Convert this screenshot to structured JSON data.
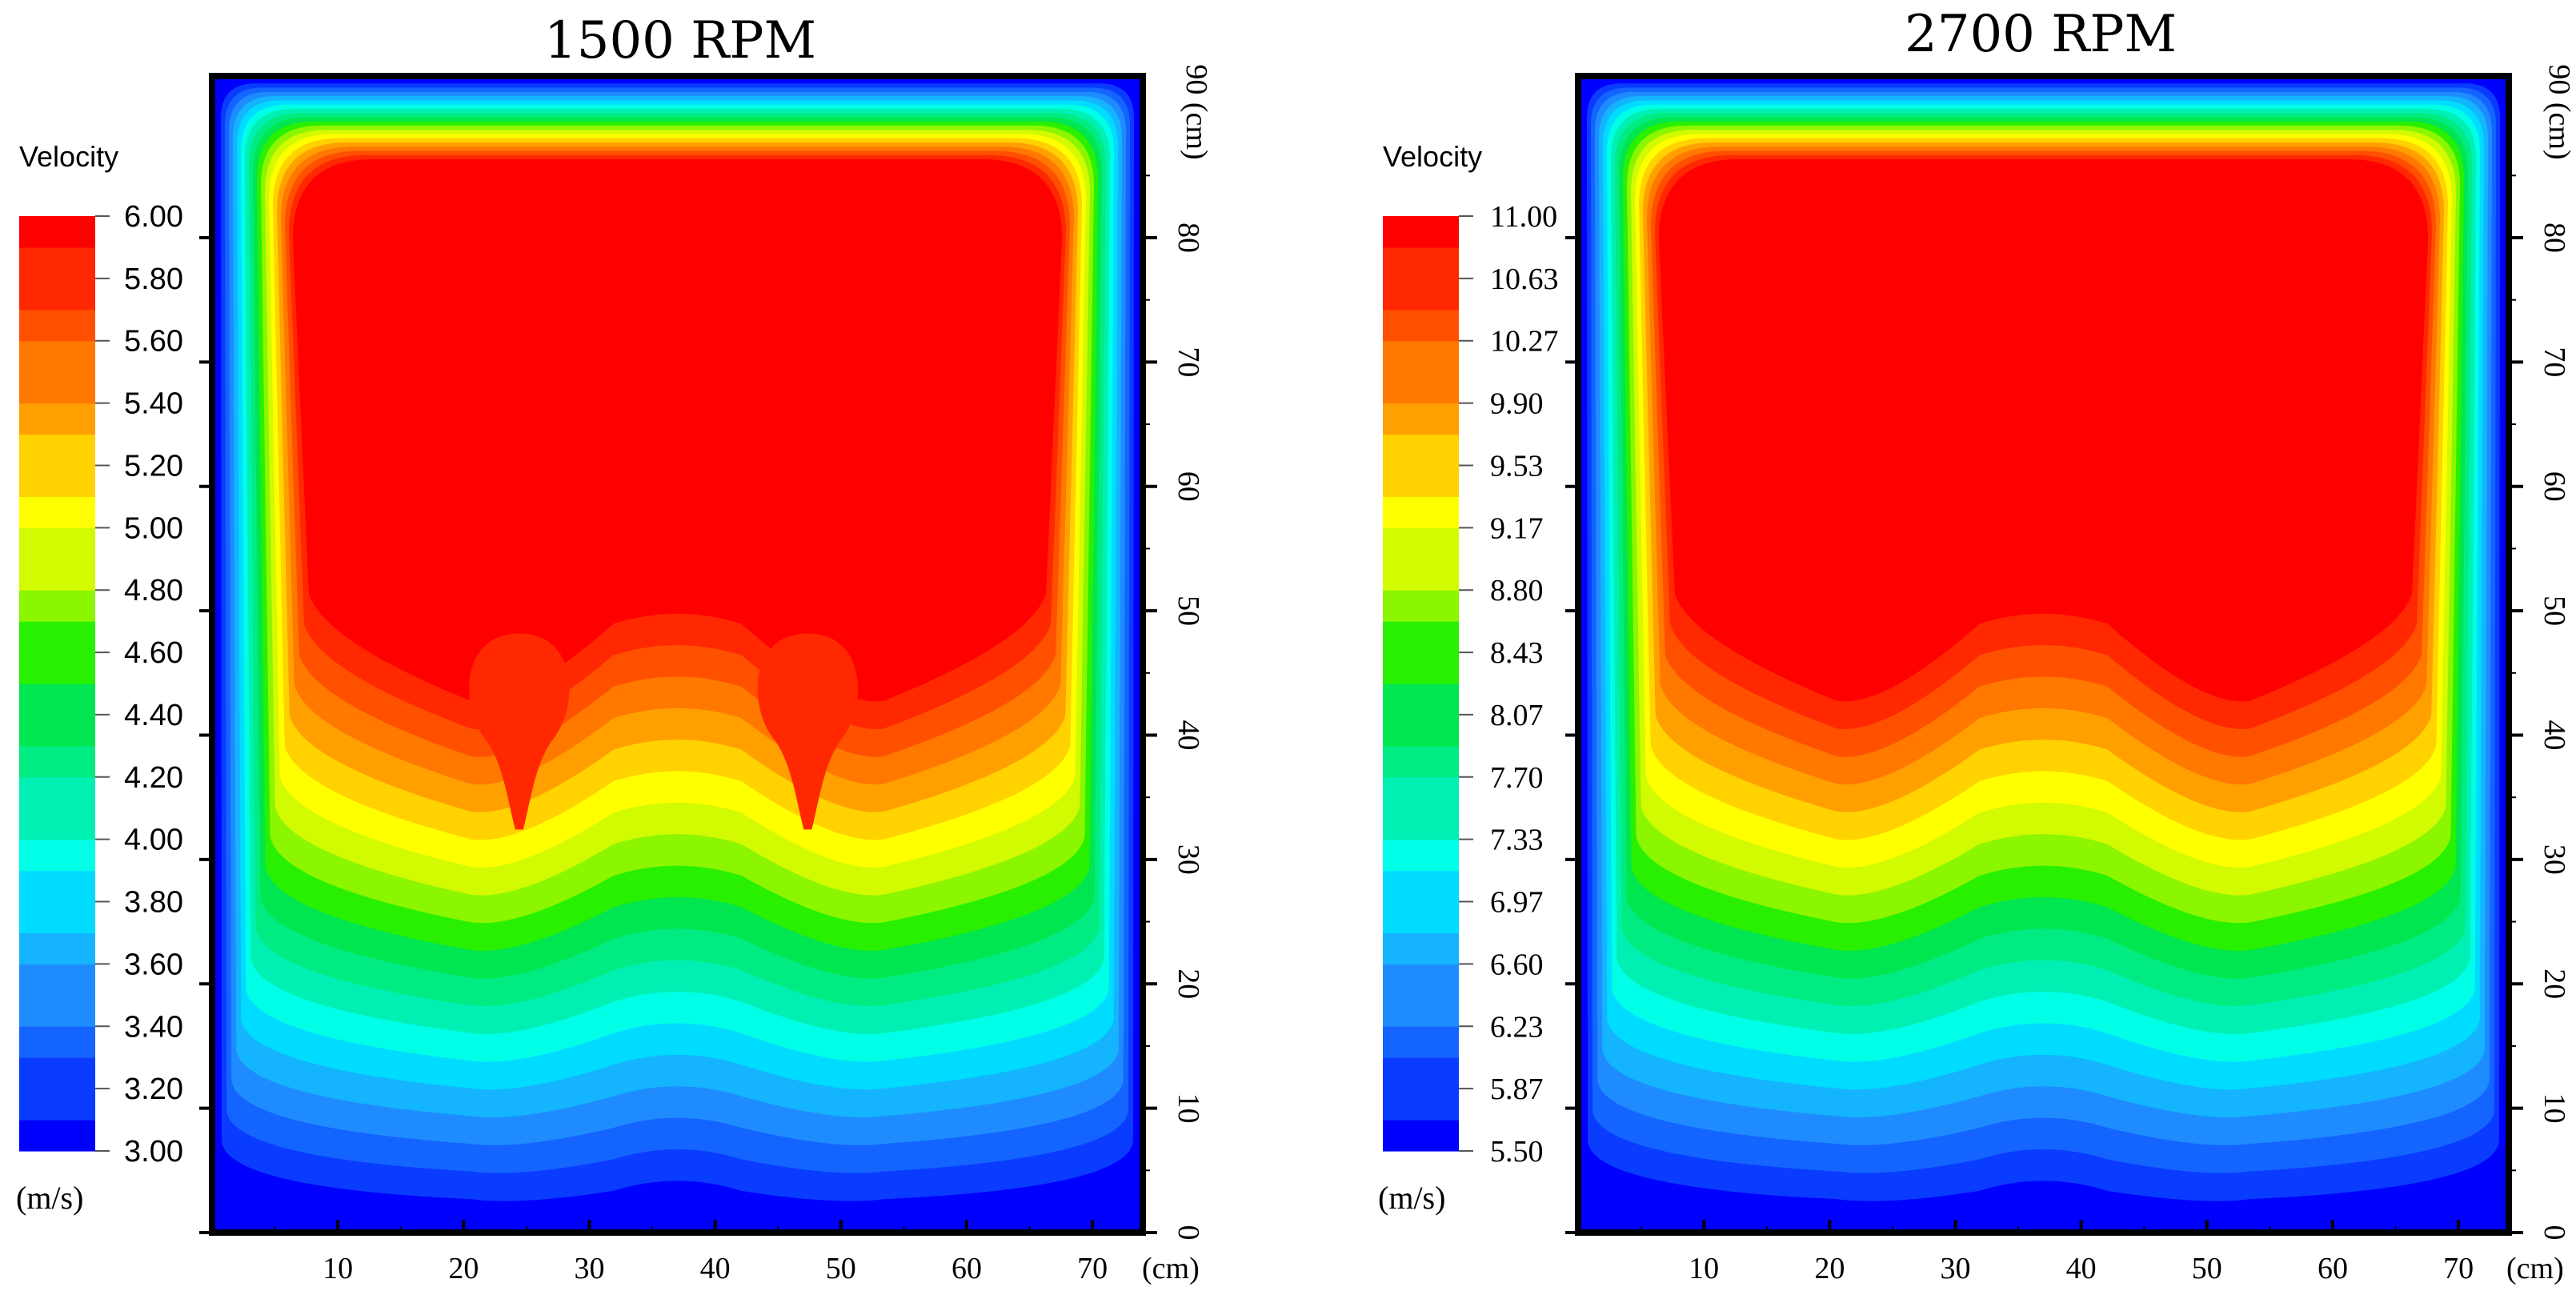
{
  "chart_data": [
    {
      "type": "heatmap",
      "title": "1500 RPM",
      "colorbar_label": "Velocity",
      "colorbar_unit": "(m/s)",
      "colorbar_ticks": [
        "6.00",
        "5.80",
        "5.60",
        "5.40",
        "5.20",
        "5.00",
        "4.80",
        "4.60",
        "4.40",
        "4.20",
        "4.00",
        "3.80",
        "3.60",
        "3.40",
        "3.20",
        "3.00"
      ],
      "value_range": [
        3.0,
        6.0
      ],
      "x_ticks": [
        "10",
        "20",
        "30",
        "40",
        "50",
        "60",
        "70"
      ],
      "x_unit": "(cm)",
      "y_ticks": [
        "0",
        "10",
        "20",
        "30",
        "40",
        "50",
        "60",
        "70",
        "80"
      ],
      "y_top_label": "90 (cm)",
      "xlim": [
        0,
        74
      ],
      "ylim": [
        0,
        93
      ],
      "bumps": true
    },
    {
      "type": "heatmap",
      "title": "2700 RPM",
      "colorbar_label": "Velocity",
      "colorbar_unit": "(m/s)",
      "colorbar_ticks": [
        "11.00",
        "10.63",
        "10.27",
        "9.90",
        "9.53",
        "9.17",
        "8.80",
        "8.43",
        "8.07",
        "7.70",
        "7.33",
        "6.97",
        "6.60",
        "6.23",
        "5.87",
        "5.50"
      ],
      "value_range": [
        5.5,
        11.0
      ],
      "x_ticks": [
        "10",
        "20",
        "30",
        "40",
        "50",
        "60",
        "70"
      ],
      "x_unit": "(cm)",
      "y_ticks": [
        "0",
        "10",
        "20",
        "30",
        "40",
        "50",
        "60",
        "70",
        "80"
      ],
      "y_top_label": "90 (cm)",
      "xlim": [
        0,
        74
      ],
      "ylim": [
        0,
        93
      ],
      "bumps": false
    }
  ]
}
